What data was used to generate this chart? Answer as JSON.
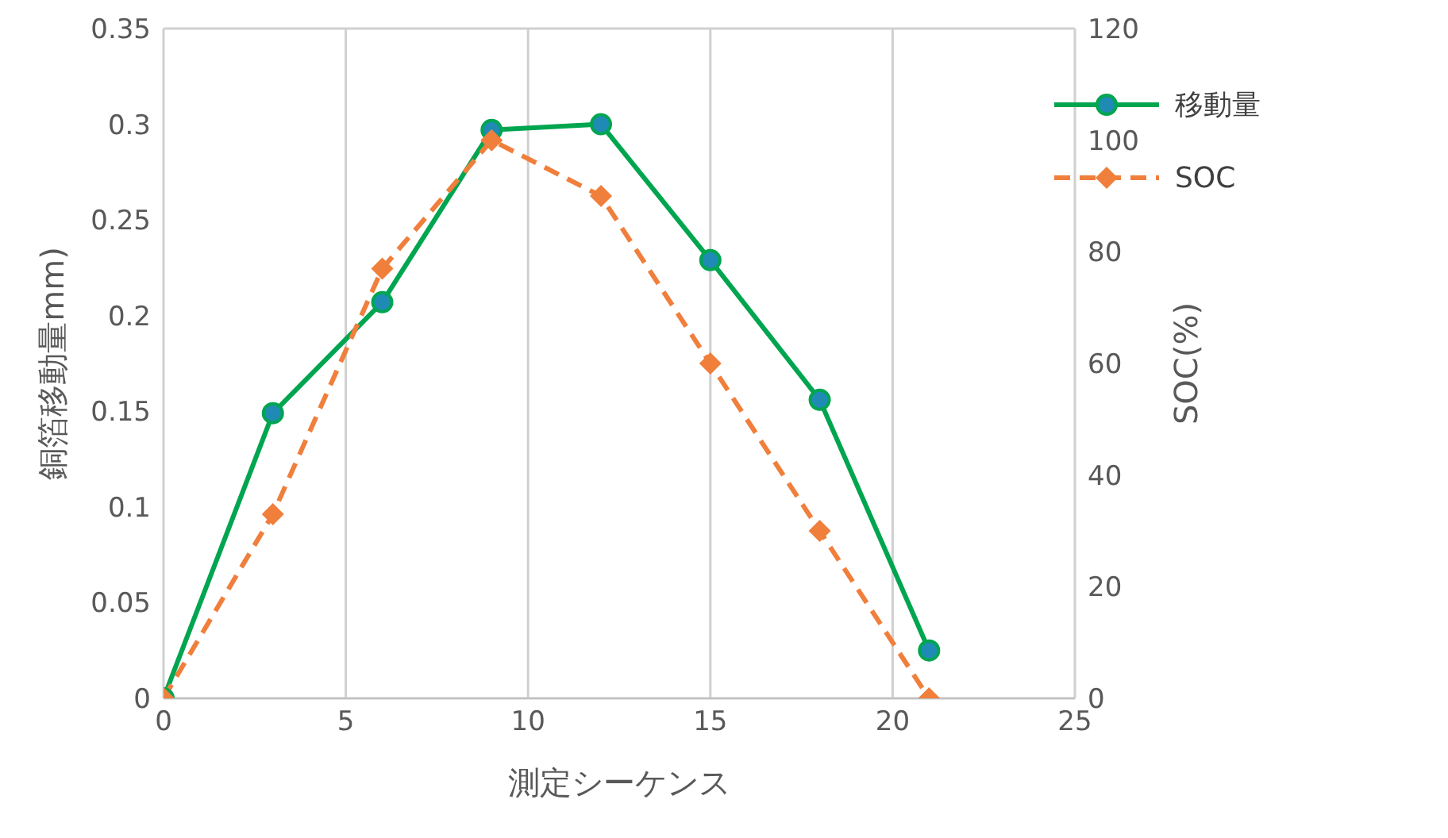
{
  "chart_data": {
    "type": "line",
    "xlabel": "測定シーケンス",
    "ylabel": "銅箔移動量mm)",
    "y2label": "SOC(%)",
    "x": [
      0,
      3,
      6,
      9,
      12,
      15,
      18,
      21
    ],
    "series": [
      {
        "name": "移動量",
        "color": "#00a550",
        "values": [
          0,
          0.149,
          0.207,
          0.297,
          0.3,
          0.229,
          0.156,
          0.025
        ],
        "marker": "circle",
        "line_style": "solid"
      },
      {
        "name": "SOC",
        "color": "#f07f3c",
        "values": [
          0,
          33,
          77,
          100,
          90,
          60,
          30,
          0
        ],
        "axis": "y2",
        "marker": "diamond",
        "line_style": "dashed"
      }
    ],
    "xlim": [
      0,
      25
    ],
    "xticks": [
      0,
      5,
      10,
      15,
      20,
      25
    ],
    "ylim": [
      0,
      0.35
    ],
    "yticks": [
      0,
      0.05,
      0.1,
      0.15,
      0.2,
      0.25,
      0.3,
      0.35
    ],
    "y2lim": [
      0,
      120
    ],
    "y2ticks": [
      0,
      20,
      40,
      60,
      80,
      100,
      120
    ],
    "grid": true,
    "legend": "top right"
  }
}
